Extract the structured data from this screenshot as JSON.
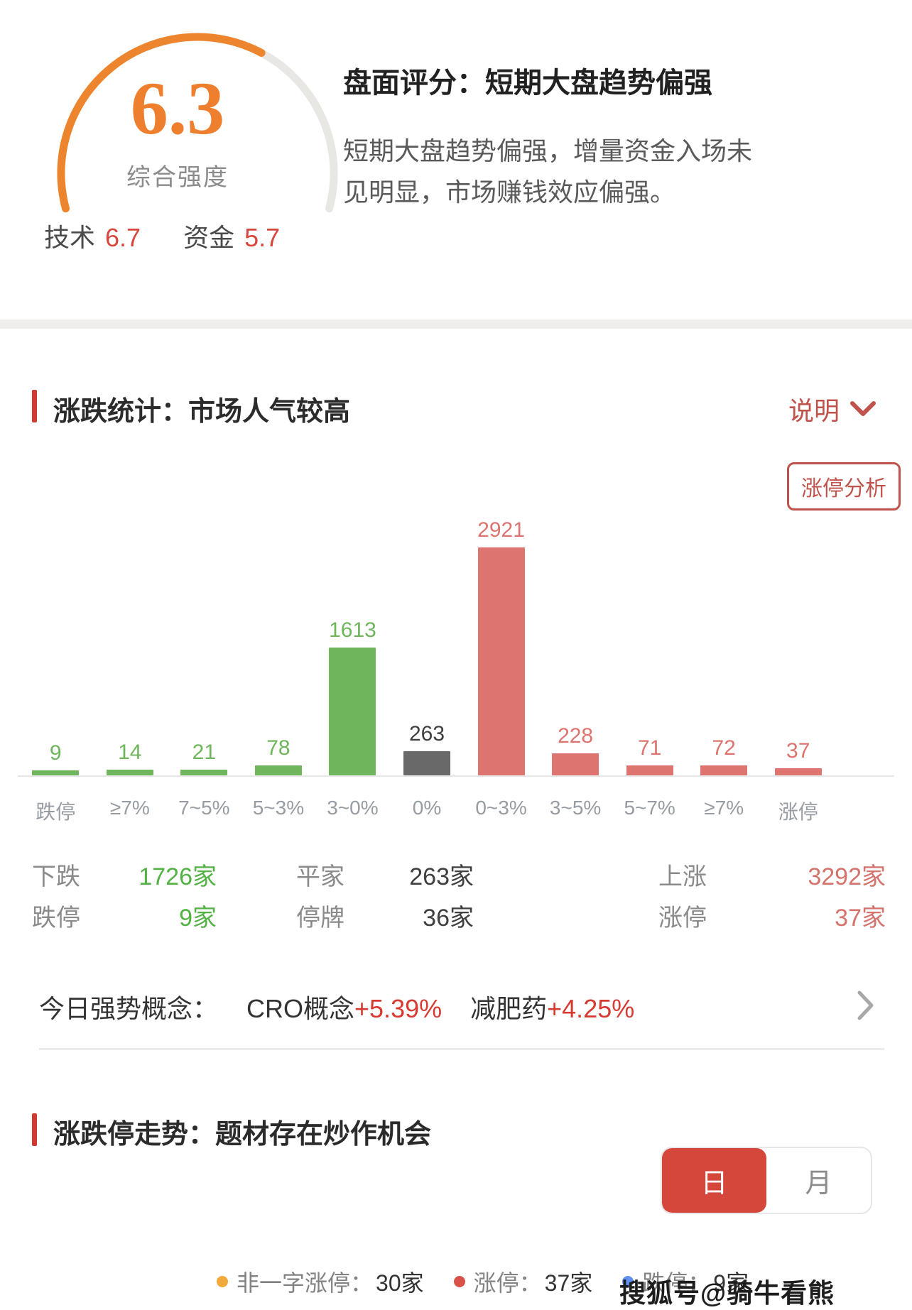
{
  "gauge": {
    "score": "6.3",
    "score_label": "综合强度",
    "metrics": [
      {
        "label": "技术",
        "value": "6.7"
      },
      {
        "label": "资金",
        "value": "5.7"
      }
    ],
    "arc_color": "#ed852f",
    "track_color": "#e9e7e4"
  },
  "rating": {
    "title": "盘面评分：短期大盘趋势偏强",
    "description": "短期大盘趋势偏强，增量资金入场未见明显，市场赚钱效应偏强。"
  },
  "stats": {
    "section_title": "涨跌统计：市场人气较高",
    "help_label": "说明",
    "limit_analysis_label": "涨停分析",
    "summary_rows": [
      {
        "cells": [
          {
            "t": "下跌",
            "c": "lbl"
          },
          {
            "t": "1726家",
            "c": "green"
          },
          {
            "t": "平家",
            "c": "lbl"
          },
          {
            "t": "263家",
            "c": "dark"
          },
          {
            "t": "上涨",
            "c": "lbl"
          },
          {
            "t": "3292家",
            "c": "red"
          }
        ]
      },
      {
        "cells": [
          {
            "t": "跌停",
            "c": "lbl"
          },
          {
            "t": "9家",
            "c": "green"
          },
          {
            "t": "停牌",
            "c": "lbl"
          },
          {
            "t": "36家",
            "c": "dark"
          },
          {
            "t": "涨停",
            "c": "lbl"
          },
          {
            "t": "37家",
            "c": "red"
          }
        ]
      }
    ],
    "concepts_prefix": "今日强势概念：",
    "concepts": [
      {
        "name": "CRO概念",
        "change": "+5.39%"
      },
      {
        "name": "减肥药",
        "change": "+4.25%"
      }
    ]
  },
  "chart_data": {
    "type": "bar",
    "title": "涨跌统计：市场人气较高",
    "categories": [
      "跌停",
      "≥7%",
      "7~5%",
      "5~3%",
      "3~0%",
      "0%",
      "0~3%",
      "3~5%",
      "5~7%",
      "≥7%",
      "涨停"
    ],
    "values": [
      9,
      14,
      21,
      78,
      1613,
      263,
      2921,
      228,
      71,
      72,
      37
    ],
    "series_colors": [
      "green",
      "green",
      "green",
      "green",
      "green",
      "gray",
      "red",
      "red",
      "red",
      "red",
      "red"
    ],
    "palette": {
      "green": "#6eb55b",
      "gray": "#696969",
      "red": "#dd7470"
    },
    "label_palette": {
      "green": "#6eb55b",
      "gray": "#3f3f3f",
      "red": "#dd7470"
    },
    "ylim": [
      0,
      2921
    ],
    "grid": false,
    "value_labels": true,
    "legend_position": "none"
  },
  "trend": {
    "section_title": "涨跌停走势：题材存在炒作机会",
    "tabs": [
      {
        "label": "日",
        "active": true
      },
      {
        "label": "月",
        "active": false
      }
    ],
    "legend": [
      {
        "label": "非一字涨停：",
        "value": "30家",
        "dot": "#f2a93b"
      },
      {
        "label": "涨停：",
        "value": "37家",
        "dot": "#d8524a"
      },
      {
        "label": "跌停：",
        "value": "9家",
        "dot": "#6290f0"
      }
    ]
  },
  "watermark": "搜狐号@骑牛看熊"
}
